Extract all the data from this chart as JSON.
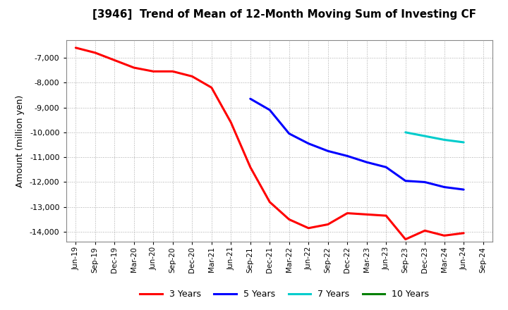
{
  "title": "[3946]  Trend of Mean of 12-Month Moving Sum of Investing CF",
  "ylabel": "Amount (million yen)",
  "background_color": "#ffffff",
  "plot_bg_color": "#ffffff",
  "grid_color": "#aaaaaa",
  "ylim": [
    -14400,
    -6300
  ],
  "yticks": [
    -14000,
    -13000,
    -12000,
    -11000,
    -10000,
    -9000,
    -8000,
    -7000
  ],
  "x_labels": [
    "Jun-19",
    "Sep-19",
    "Dec-19",
    "Mar-20",
    "Jun-20",
    "Sep-20",
    "Dec-20",
    "Mar-21",
    "Jun-21",
    "Sep-21",
    "Dec-21",
    "Mar-22",
    "Jun-22",
    "Sep-22",
    "Dec-22",
    "Mar-23",
    "Jun-23",
    "Sep-23",
    "Dec-23",
    "Mar-24",
    "Jun-24",
    "Sep-24"
  ],
  "series_3y": {
    "label": "3 Years",
    "color": "#ff0000",
    "x": [
      "Jun-19",
      "Sep-19",
      "Dec-19",
      "Mar-20",
      "Jun-20",
      "Sep-20",
      "Dec-20",
      "Mar-21",
      "Jun-21",
      "Sep-21",
      "Dec-21",
      "Mar-22",
      "Jun-22",
      "Sep-22",
      "Dec-22",
      "Mar-23",
      "Jun-23",
      "Sep-23",
      "Dec-23",
      "Mar-24",
      "Jun-24"
    ],
    "y": [
      -6600,
      -6800,
      -7100,
      -7400,
      -7550,
      -7550,
      -7750,
      -8200,
      -9600,
      -11400,
      -12800,
      -13500,
      -13850,
      -13700,
      -13250,
      -13300,
      -13350,
      -14300,
      -13950,
      -14150,
      -14050
    ]
  },
  "series_5y": {
    "label": "5 Years",
    "color": "#0000ff",
    "x": [
      "Sep-21",
      "Dec-21",
      "Mar-22",
      "Jun-22",
      "Sep-22",
      "Dec-22",
      "Mar-23",
      "Jun-23",
      "Sep-23",
      "Dec-23",
      "Mar-24",
      "Jun-24"
    ],
    "y": [
      -8650,
      -9100,
      -10050,
      -10450,
      -10750,
      -10950,
      -11200,
      -11400,
      -11950,
      -12000,
      -12200,
      -12300
    ]
  },
  "series_7y": {
    "label": "7 Years",
    "color": "#00cccc",
    "x": [
      "Sep-23",
      "Dec-23",
      "Mar-24",
      "Jun-24"
    ],
    "y": [
      -10000,
      -10150,
      -10300,
      -10400
    ]
  },
  "series_10y": {
    "label": "10 Years",
    "color": "#008000",
    "x": [],
    "y": []
  },
  "linewidth": 2.2
}
